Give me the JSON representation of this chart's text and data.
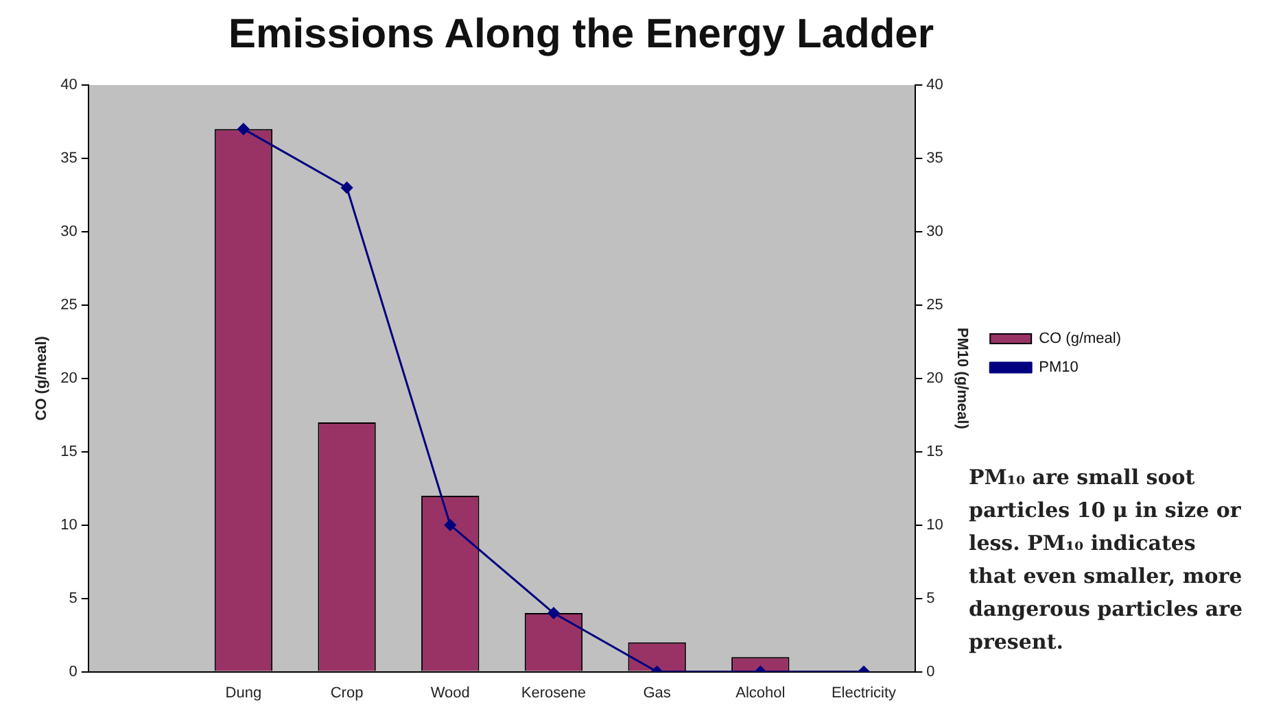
{
  "chart_data": {
    "type": "bar",
    "title": "Emissions Along the Energy Ladder",
    "ylabel": "CO (g/meal)",
    "y2label": "PM10 (g/meal)",
    "categories": [
      null,
      "Dung",
      "Crop",
      "Wood",
      "Kerosene",
      "Gas",
      "Alcohol",
      "Electricity"
    ],
    "series": [
      {
        "name": "CO (g/meal)",
        "color": "#993366",
        "values": [
          null,
          37,
          17,
          12,
          4,
          2,
          1,
          0
        ]
      },
      {
        "name": "PM10",
        "type": "line",
        "axis": "y2",
        "color": "#000080",
        "marker": "diamond",
        "values": [
          null,
          37,
          33,
          10,
          4,
          0,
          0,
          0
        ]
      }
    ],
    "ylim": [
      0,
      40
    ],
    "yticks": [
      0,
      5,
      10,
      15,
      20,
      25,
      30,
      35,
      40
    ],
    "y2lim": [
      0,
      40
    ],
    "y2ticks": [
      0,
      5,
      10,
      15,
      20,
      25,
      30,
      35,
      40
    ],
    "grid": false,
    "legend": "right",
    "annotations": [
      "PM₁₀ are small soot particles 10 μ in size or less.  PM₁₀ indicates that even smaller, more dangerous particles are present."
    ]
  }
}
